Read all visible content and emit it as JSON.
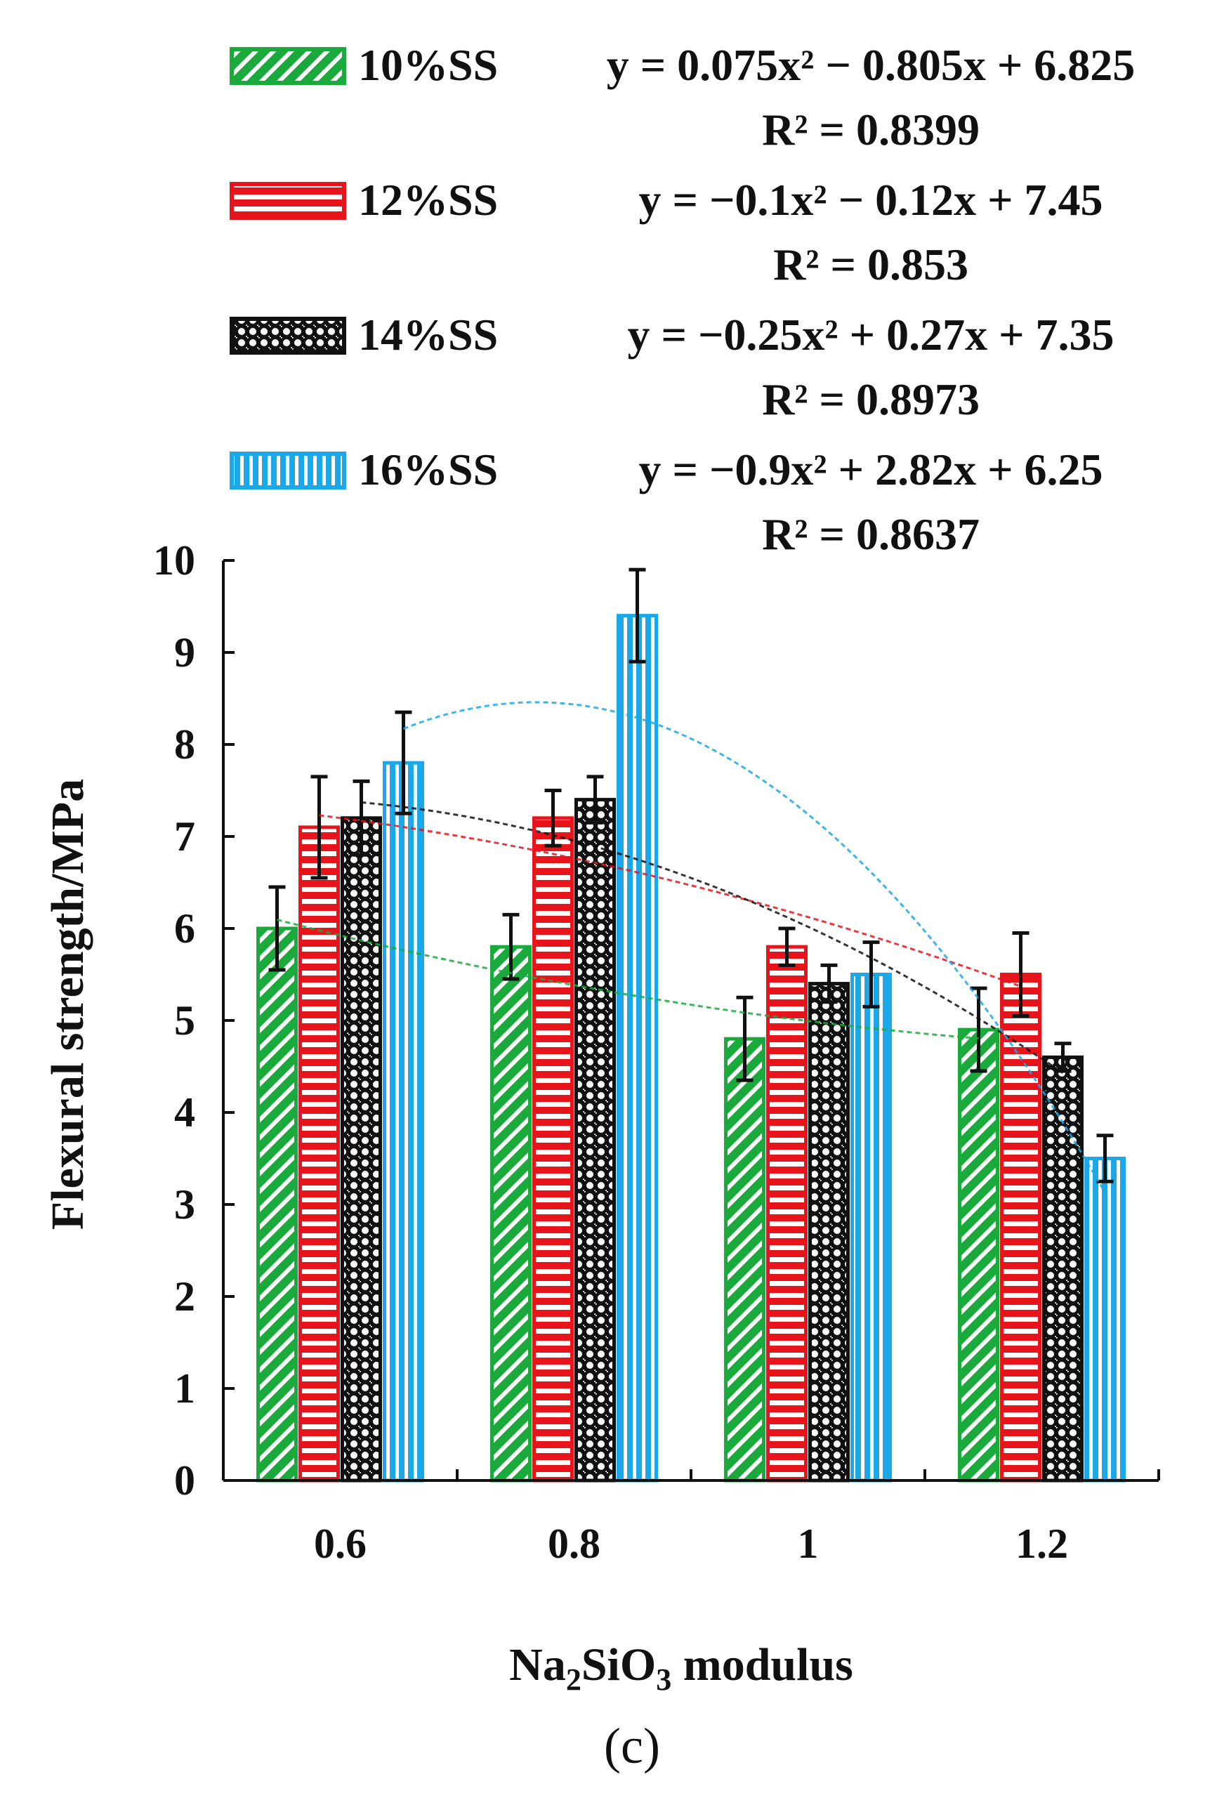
{
  "chart_data": {
    "type": "bar",
    "panel_label": "(c)",
    "ylabel": "Flexural strength/MPa",
    "xlabel_parts": [
      "Na",
      "2",
      "SiO",
      "3",
      " modulus"
    ],
    "ylim": [
      0,
      10
    ],
    "yticks": [
      "0",
      "1",
      "2",
      "3",
      "4",
      "5",
      "6",
      "7",
      "8",
      "9",
      "10"
    ],
    "categories": [
      "0.6",
      "0.8",
      "1",
      "1.2"
    ],
    "x_values": [
      0.6,
      0.8,
      1.0,
      1.2
    ],
    "series": [
      {
        "name": "10%SS",
        "color": "#1aaa3c",
        "pattern": "diagonal-stripes",
        "values": [
          6.0,
          5.8,
          4.8,
          4.9
        ],
        "errors": [
          0.45,
          0.35,
          0.45,
          0.45
        ],
        "equation": "y = 0.075x² − 0.805x + 6.825",
        "r2": "R² = 0.8399",
        "trend": [
          0.075,
          -0.805,
          6.825
        ]
      },
      {
        "name": "12%SS",
        "color": "#e8141c",
        "pattern": "horizontal-stripes",
        "values": [
          7.1,
          7.2,
          5.8,
          5.5
        ],
        "errors": [
          0.55,
          0.3,
          0.2,
          0.45
        ],
        "equation": "y = −0.1x² − 0.12x + 7.45",
        "r2": "R² = 0.853",
        "trend": [
          -0.1,
          -0.12,
          7.45
        ]
      },
      {
        "name": "14%SS",
        "color": "#111111",
        "pattern": "dotted-circles",
        "values": [
          7.2,
          7.4,
          5.4,
          4.6
        ],
        "errors": [
          0.4,
          0.25,
          0.2,
          0.15
        ],
        "equation": "y = −0.25x² + 0.27x + 7.35",
        "r2": "R² = 0.8973",
        "trend": [
          -0.25,
          0.27,
          7.35
        ]
      },
      {
        "name": "16%SS",
        "color": "#1aa8e8",
        "pattern": "vertical-stripes",
        "values": [
          7.8,
          9.4,
          5.5,
          3.5
        ],
        "errors": [
          0.55,
          0.5,
          0.35,
          0.25
        ],
        "equation": "y = −0.9x² + 2.82x + 6.25",
        "r2": "R² = 0.8637",
        "trend": [
          -0.9,
          2.82,
          6.25
        ]
      }
    ]
  }
}
